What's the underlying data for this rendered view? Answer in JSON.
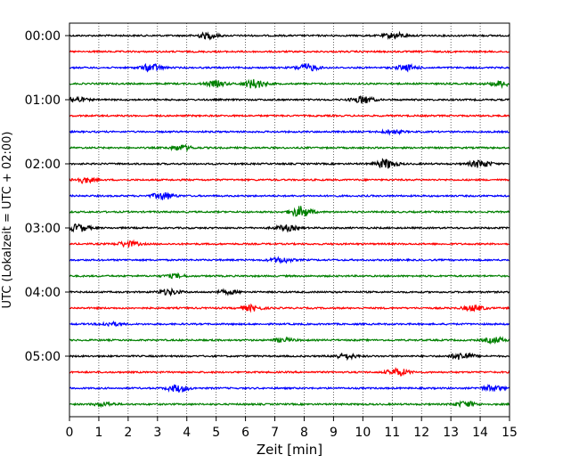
{
  "chart_data": {
    "type": "line",
    "title": "",
    "xlabel": "Zeit  [min]",
    "ylabel": "UTC (Lokalzeit = UTC + 02:00)",
    "xlim": [
      0,
      15
    ],
    "x_ticks": [
      0,
      1,
      2,
      3,
      4,
      5,
      6,
      7,
      8,
      9,
      10,
      11,
      12,
      13,
      14,
      15
    ],
    "y_tick_labels": [
      "00:00",
      "01:00",
      "02:00",
      "03:00",
      "04:00",
      "05:00"
    ],
    "grid": "vertical dotted",
    "trace_interval_minutes": 15,
    "trace_count": 24,
    "colors": {
      "cycle": [
        "#000000",
        "#ff0000",
        "#0000ff",
        "#008000"
      ]
    },
    "series": [
      {
        "start": "00:00",
        "color": "#000000",
        "bursts": [
          {
            "t": 4.7,
            "amp": 3
          },
          {
            "t": 11.1,
            "amp": 3
          }
        ]
      },
      {
        "start": "00:15",
        "color": "#ff0000",
        "bursts": []
      },
      {
        "start": "00:30",
        "color": "#0000ff",
        "bursts": [
          {
            "t": 2.8,
            "amp": 4
          },
          {
            "t": 8.1,
            "amp": 4
          },
          {
            "t": 11.5,
            "amp": 3
          }
        ]
      },
      {
        "start": "00:45",
        "color": "#008000",
        "bursts": [
          {
            "t": 6.3,
            "amp": 5
          },
          {
            "t": 5.0,
            "amp": 3
          },
          {
            "t": 14.7,
            "amp": 3
          }
        ]
      },
      {
        "start": "01:00",
        "color": "#000000",
        "bursts": [
          {
            "t": 0.2,
            "amp": 3
          },
          {
            "t": 10.0,
            "amp": 4
          }
        ]
      },
      {
        "start": "01:15",
        "color": "#ff0000",
        "bursts": []
      },
      {
        "start": "01:30",
        "color": "#0000ff",
        "bursts": [
          {
            "t": 11.0,
            "amp": 2
          }
        ]
      },
      {
        "start": "01:45",
        "color": "#008000",
        "bursts": [
          {
            "t": 3.8,
            "amp": 3
          }
        ]
      },
      {
        "start": "02:00",
        "color": "#000000",
        "bursts": [
          {
            "t": 10.8,
            "amp": 5
          },
          {
            "t": 14.0,
            "amp": 4
          }
        ]
      },
      {
        "start": "02:15",
        "color": "#ff0000",
        "bursts": [
          {
            "t": 0.5,
            "amp": 3
          }
        ]
      },
      {
        "start": "02:30",
        "color": "#0000ff",
        "bursts": [
          {
            "t": 3.2,
            "amp": 4
          }
        ]
      },
      {
        "start": "02:45",
        "color": "#008000",
        "bursts": [
          {
            "t": 7.9,
            "amp": 6
          }
        ]
      },
      {
        "start": "03:00",
        "color": "#000000",
        "bursts": [
          {
            "t": 0.3,
            "amp": 4
          },
          {
            "t": 7.4,
            "amp": 3
          }
        ]
      },
      {
        "start": "03:15",
        "color": "#ff0000",
        "bursts": [
          {
            "t": 2.0,
            "amp": 3
          }
        ]
      },
      {
        "start": "03:30",
        "color": "#0000ff",
        "bursts": [
          {
            "t": 7.2,
            "amp": 3
          }
        ]
      },
      {
        "start": "03:45",
        "color": "#008000",
        "bursts": [
          {
            "t": 3.6,
            "amp": 2
          }
        ]
      },
      {
        "start": "04:00",
        "color": "#000000",
        "bursts": [
          {
            "t": 3.4,
            "amp": 3
          },
          {
            "t": 5.4,
            "amp": 2
          }
        ]
      },
      {
        "start": "04:15",
        "color": "#ff0000",
        "bursts": [
          {
            "t": 6.2,
            "amp": 3
          },
          {
            "t": 13.8,
            "amp": 3
          }
        ]
      },
      {
        "start": "04:30",
        "color": "#0000ff",
        "bursts": [
          {
            "t": 1.4,
            "amp": 2
          }
        ]
      },
      {
        "start": "04:45",
        "color": "#008000",
        "bursts": [
          {
            "t": 7.3,
            "amp": 2
          },
          {
            "t": 14.5,
            "amp": 3
          }
        ]
      },
      {
        "start": "05:00",
        "color": "#000000",
        "bursts": [
          {
            "t": 13.4,
            "amp": 4
          },
          {
            "t": 9.4,
            "amp": 3
          }
        ]
      },
      {
        "start": "05:15",
        "color": "#ff0000",
        "bursts": [
          {
            "t": 11.2,
            "amp": 4
          }
        ]
      },
      {
        "start": "05:30",
        "color": "#0000ff",
        "bursts": [
          {
            "t": 3.7,
            "amp": 4
          },
          {
            "t": 14.4,
            "amp": 3
          }
        ]
      },
      {
        "start": "05:45",
        "color": "#008000",
        "bursts": [
          {
            "t": 13.5,
            "amp": 3
          },
          {
            "t": 1.2,
            "amp": 2
          }
        ]
      }
    ]
  }
}
